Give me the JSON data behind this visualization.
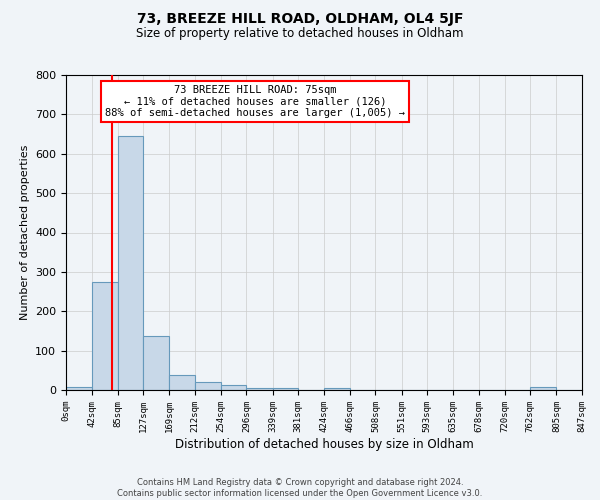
{
  "title": "73, BREEZE HILL ROAD, OLDHAM, OL4 5JF",
  "subtitle": "Size of property relative to detached houses in Oldham",
  "xlabel": "Distribution of detached houses by size in Oldham",
  "ylabel": "Number of detached properties",
  "bin_edges": [
    0,
    42,
    85,
    127,
    169,
    212,
    254,
    296,
    339,
    381,
    424,
    466,
    508,
    551,
    593,
    635,
    678,
    720,
    762,
    805,
    847
  ],
  "bar_heights": [
    7,
    275,
    645,
    138,
    38,
    20,
    12,
    5,
    5,
    0,
    5,
    0,
    0,
    0,
    0,
    0,
    0,
    0,
    7,
    0
  ],
  "bar_color": "#c8d8e8",
  "bar_edge_color": "#6699bb",
  "vline_x": 75,
  "vline_color": "red",
  "ylim": [
    0,
    800
  ],
  "yticks": [
    0,
    100,
    200,
    300,
    400,
    500,
    600,
    700,
    800
  ],
  "annotation_title": "73 BREEZE HILL ROAD: 75sqm",
  "annotation_line1": "← 11% of detached houses are smaller (126)",
  "annotation_line2": "88% of semi-detached houses are larger (1,005) →",
  "annotation_box_color": "#ffffff",
  "annotation_box_edge": "red",
  "tick_labels": [
    "0sqm",
    "42sqm",
    "85sqm",
    "127sqm",
    "169sqm",
    "212sqm",
    "254sqm",
    "296sqm",
    "339sqm",
    "381sqm",
    "424sqm",
    "466sqm",
    "508sqm",
    "551sqm",
    "593sqm",
    "635sqm",
    "678sqm",
    "720sqm",
    "762sqm",
    "805sqm",
    "847sqm"
  ],
  "footer_line1": "Contains HM Land Registry data © Crown copyright and database right 2024.",
  "footer_line2": "Contains public sector information licensed under the Open Government Licence v3.0.",
  "background_color": "#f0f4f8",
  "grid_color": "#cccccc",
  "title_fontsize": 10,
  "subtitle_fontsize": 8.5,
  "ylabel_fontsize": 8,
  "xlabel_fontsize": 8.5,
  "footer_fontsize": 6,
  "annot_fontsize": 7.5,
  "xtick_fontsize": 6.5,
  "ytick_fontsize": 8
}
